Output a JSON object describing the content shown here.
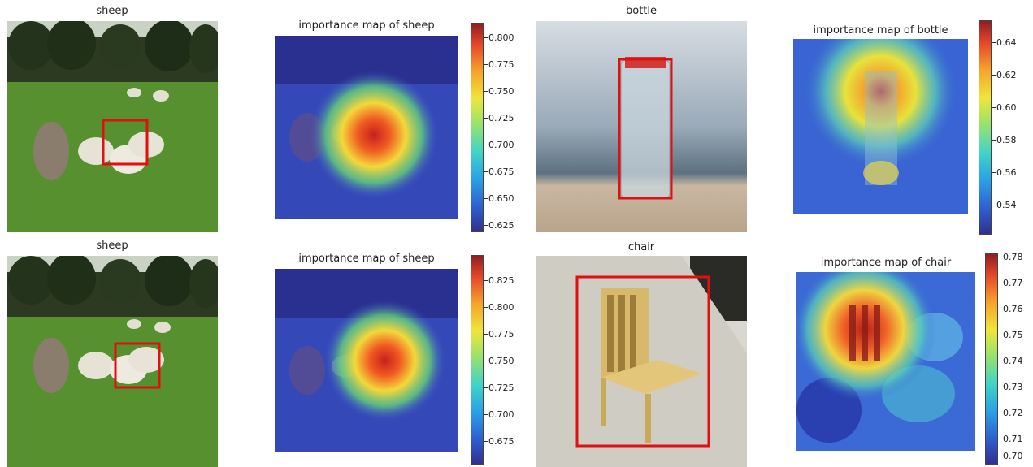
{
  "panels": {
    "r1c1": {
      "title": "sheep",
      "bbox_color": "#e01010"
    },
    "r1c2": {
      "title": "importance map of sheep",
      "ticks": [
        "0.800",
        "0.775",
        "0.750",
        "0.725",
        "0.700",
        "0.675",
        "0.650",
        "0.625"
      ]
    },
    "r1c3": {
      "title": "bottle",
      "bbox_color": "#e01010"
    },
    "r1c4": {
      "title": "importance map of bottle",
      "ticks": [
        "0.64",
        "0.62",
        "0.60",
        "0.58",
        "0.56",
        "0.54"
      ]
    },
    "r2c1": {
      "title": "sheep",
      "bbox_color": "#e01010"
    },
    "r2c2": {
      "title": "importance map of sheep",
      "ticks": [
        "0.825",
        "0.800",
        "0.775",
        "0.750",
        "0.725",
        "0.700",
        "0.675"
      ]
    },
    "r2c3": {
      "title": "chair",
      "bbox_color": "#e01010"
    },
    "r2c4": {
      "title": "importance map of chair",
      "ticks": [
        "0.78",
        "0.77",
        "0.76",
        "0.75",
        "0.74",
        "0.73",
        "0.72",
        "0.71",
        "0.70"
      ]
    }
  },
  "colormap": "jet"
}
